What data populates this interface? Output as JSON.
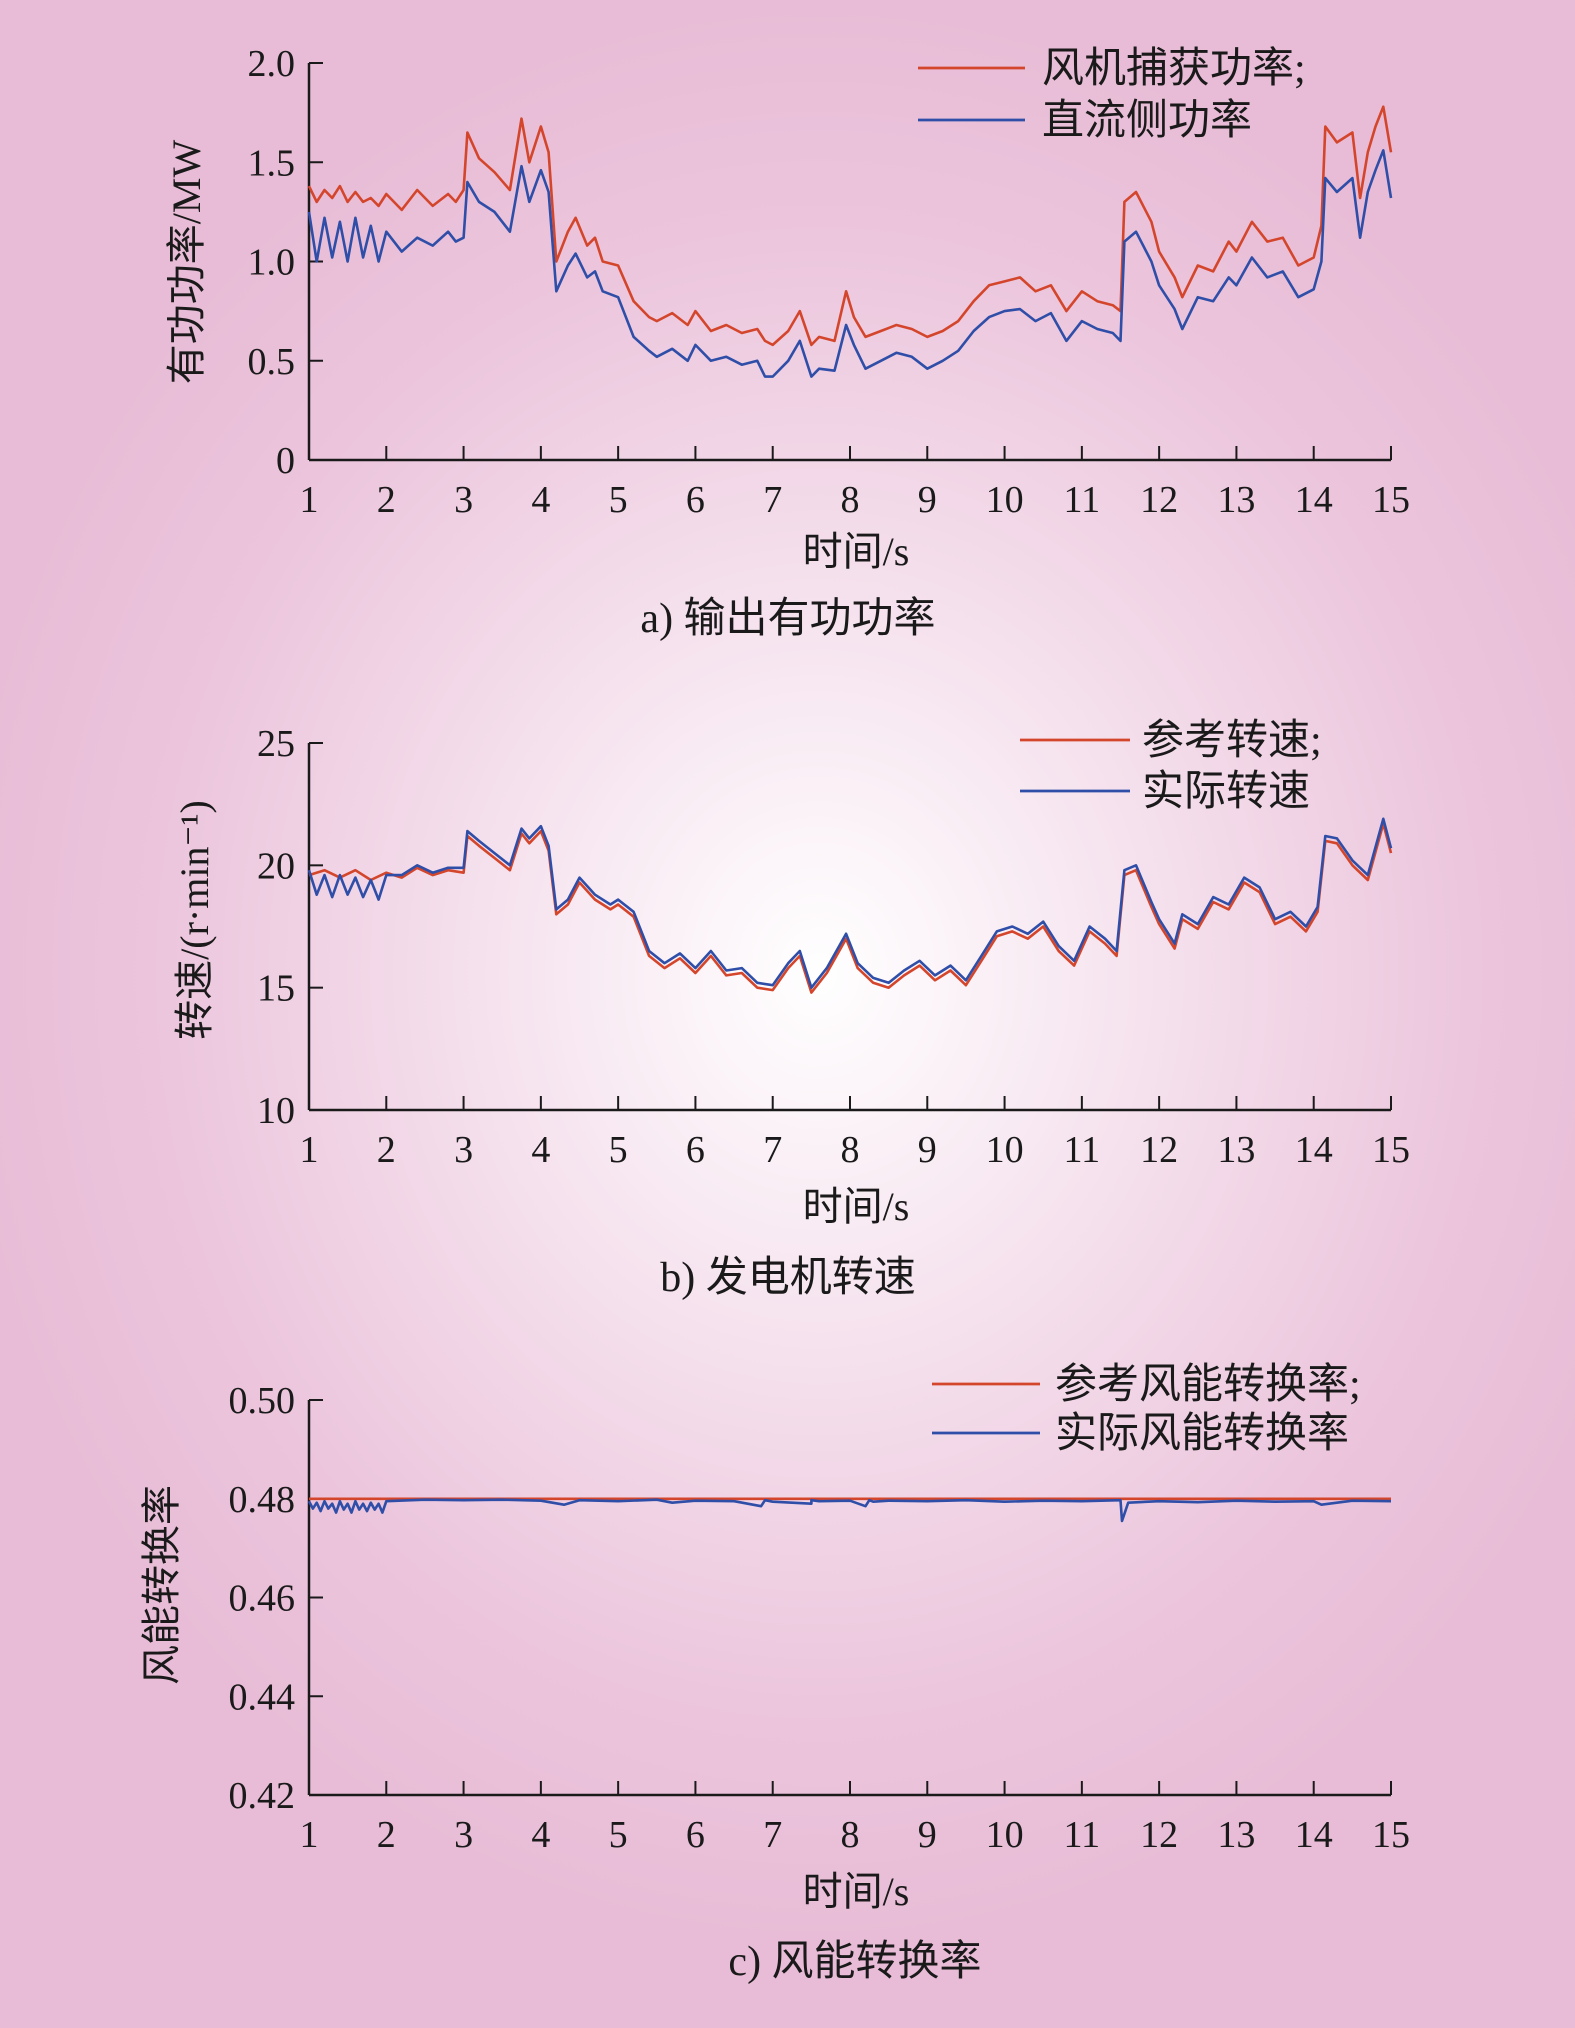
{
  "colors": {
    "red": "#d4462c",
    "blue": "#2f4ea8",
    "axis": "#1a1a1a"
  },
  "chart_data": [
    {
      "type": "line",
      "caption": "a) 输出有功功率",
      "xlabel": "时间/s",
      "ylabel": "有功功率/MW",
      "xlim": [
        1,
        15
      ],
      "ylim": [
        0,
        2.0
      ],
      "x_ticks": [
        "1",
        "2",
        "3",
        "4",
        "5",
        "6",
        "7",
        "8",
        "9",
        "10",
        "11",
        "12",
        "13",
        "14",
        "15"
      ],
      "y_ticks": [
        "0",
        "0.5",
        "1.0",
        "1.5",
        "2.0"
      ],
      "legend_position": "top-right",
      "series": [
        {
          "name": "风机捕获功率;",
          "color": "#d4462c",
          "x": [
            1.0,
            1.1,
            1.2,
            1.3,
            1.4,
            1.5,
            1.6,
            1.7,
            1.8,
            1.9,
            2.0,
            2.2,
            2.4,
            2.6,
            2.8,
            2.9,
            3.0,
            3.05,
            3.2,
            3.4,
            3.6,
            3.75,
            3.85,
            4.0,
            4.1,
            4.2,
            4.35,
            4.45,
            4.6,
            4.7,
            4.8,
            5.0,
            5.2,
            5.4,
            5.5,
            5.7,
            5.9,
            6.0,
            6.2,
            6.4,
            6.6,
            6.8,
            6.9,
            7.0,
            7.2,
            7.35,
            7.5,
            7.6,
            7.8,
            7.95,
            8.05,
            8.2,
            8.4,
            8.6,
            8.8,
            9.0,
            9.2,
            9.4,
            9.6,
            9.8,
            10.0,
            10.2,
            10.4,
            10.6,
            10.8,
            11.0,
            11.2,
            11.4,
            11.5,
            11.55,
            11.7,
            11.9,
            12.0,
            12.2,
            12.3,
            12.5,
            12.7,
            12.9,
            13.0,
            13.2,
            13.4,
            13.6,
            13.8,
            14.0,
            14.1,
            14.15,
            14.3,
            14.5,
            14.6,
            14.7,
            14.8,
            14.9,
            15.0
          ],
          "y": [
            1.38,
            1.3,
            1.36,
            1.32,
            1.38,
            1.3,
            1.35,
            1.3,
            1.32,
            1.28,
            1.34,
            1.26,
            1.36,
            1.28,
            1.34,
            1.3,
            1.36,
            1.65,
            1.52,
            1.45,
            1.36,
            1.72,
            1.5,
            1.68,
            1.55,
            1.0,
            1.15,
            1.22,
            1.08,
            1.12,
            1.0,
            0.98,
            0.8,
            0.72,
            0.7,
            0.74,
            0.68,
            0.75,
            0.65,
            0.68,
            0.64,
            0.66,
            0.6,
            0.58,
            0.65,
            0.75,
            0.58,
            0.62,
            0.6,
            0.85,
            0.72,
            0.62,
            0.65,
            0.68,
            0.66,
            0.62,
            0.65,
            0.7,
            0.8,
            0.88,
            0.9,
            0.92,
            0.85,
            0.88,
            0.75,
            0.85,
            0.8,
            0.78,
            0.75,
            1.3,
            1.35,
            1.2,
            1.05,
            0.92,
            0.82,
            0.98,
            0.95,
            1.1,
            1.05,
            1.2,
            1.1,
            1.12,
            0.98,
            1.02,
            1.18,
            1.68,
            1.6,
            1.65,
            1.32,
            1.55,
            1.68,
            1.78,
            1.55
          ]
        },
        {
          "name": "直流侧功率",
          "color": "#2f4ea8",
          "x": [
            1.0,
            1.1,
            1.2,
            1.3,
            1.4,
            1.5,
            1.6,
            1.7,
            1.8,
            1.9,
            2.0,
            2.2,
            2.4,
            2.6,
            2.8,
            2.9,
            3.0,
            3.05,
            3.2,
            3.4,
            3.6,
            3.75,
            3.85,
            4.0,
            4.1,
            4.2,
            4.35,
            4.45,
            4.6,
            4.7,
            4.8,
            5.0,
            5.2,
            5.4,
            5.5,
            5.7,
            5.9,
            6.0,
            6.2,
            6.4,
            6.6,
            6.8,
            6.9,
            7.0,
            7.2,
            7.35,
            7.5,
            7.6,
            7.8,
            7.95,
            8.05,
            8.2,
            8.4,
            8.6,
            8.8,
            9.0,
            9.2,
            9.4,
            9.6,
            9.8,
            10.0,
            10.2,
            10.4,
            10.6,
            10.8,
            11.0,
            11.2,
            11.4,
            11.5,
            11.55,
            11.7,
            11.9,
            12.0,
            12.2,
            12.3,
            12.5,
            12.7,
            12.9,
            13.0,
            13.2,
            13.4,
            13.6,
            13.8,
            14.0,
            14.1,
            14.15,
            14.3,
            14.5,
            14.6,
            14.7,
            14.8,
            14.9,
            15.0
          ],
          "y": [
            1.25,
            1.0,
            1.22,
            1.02,
            1.2,
            1.0,
            1.22,
            1.02,
            1.18,
            1.0,
            1.15,
            1.05,
            1.12,
            1.08,
            1.15,
            1.1,
            1.12,
            1.4,
            1.3,
            1.25,
            1.15,
            1.48,
            1.3,
            1.46,
            1.35,
            0.85,
            0.98,
            1.04,
            0.92,
            0.95,
            0.85,
            0.82,
            0.62,
            0.55,
            0.52,
            0.56,
            0.5,
            0.58,
            0.5,
            0.52,
            0.48,
            0.5,
            0.42,
            0.42,
            0.5,
            0.6,
            0.42,
            0.46,
            0.45,
            0.68,
            0.58,
            0.46,
            0.5,
            0.54,
            0.52,
            0.46,
            0.5,
            0.55,
            0.65,
            0.72,
            0.75,
            0.76,
            0.7,
            0.74,
            0.6,
            0.7,
            0.66,
            0.64,
            0.6,
            1.1,
            1.15,
            1.0,
            0.88,
            0.76,
            0.66,
            0.82,
            0.8,
            0.92,
            0.88,
            1.02,
            0.92,
            0.95,
            0.82,
            0.86,
            1.0,
            1.42,
            1.35,
            1.42,
            1.12,
            1.35,
            1.46,
            1.56,
            1.32
          ]
        }
      ]
    },
    {
      "type": "line",
      "caption": "b) 发电机转速",
      "xlabel": "时间/s",
      "ylabel": "转速/(r·min⁻¹)",
      "xlim": [
        1,
        15
      ],
      "ylim": [
        10,
        25
      ],
      "x_ticks": [
        "1",
        "2",
        "3",
        "4",
        "5",
        "6",
        "7",
        "8",
        "9",
        "10",
        "11",
        "12",
        "13",
        "14",
        "15"
      ],
      "y_ticks": [
        "10",
        "15",
        "20",
        "25"
      ],
      "legend_position": "top-right",
      "series": [
        {
          "name": "参考转速;",
          "color": "#d4462c",
          "x": [
            1.0,
            1.2,
            1.4,
            1.6,
            1.8,
            2.0,
            2.2,
            2.4,
            2.6,
            2.8,
            3.0,
            3.05,
            3.2,
            3.4,
            3.6,
            3.75,
            3.85,
            4.0,
            4.1,
            4.2,
            4.35,
            4.5,
            4.7,
            4.9,
            5.0,
            5.2,
            5.4,
            5.6,
            5.8,
            6.0,
            6.2,
            6.4,
            6.6,
            6.8,
            7.0,
            7.2,
            7.35,
            7.5,
            7.7,
            7.95,
            8.1,
            8.3,
            8.5,
            8.7,
            8.9,
            9.1,
            9.3,
            9.5,
            9.7,
            9.9,
            10.1,
            10.3,
            10.5,
            10.7,
            10.9,
            11.1,
            11.3,
            11.45,
            11.55,
            11.7,
            11.9,
            12.0,
            12.2,
            12.3,
            12.5,
            12.7,
            12.9,
            13.1,
            13.3,
            13.5,
            13.7,
            13.9,
            14.05,
            14.15,
            14.3,
            14.5,
            14.7,
            14.9,
            15.0
          ],
          "y": [
            19.6,
            19.8,
            19.5,
            19.8,
            19.4,
            19.7,
            19.5,
            19.9,
            19.6,
            19.8,
            19.7,
            21.2,
            20.8,
            20.3,
            19.8,
            21.3,
            20.9,
            21.4,
            20.6,
            18.0,
            18.4,
            19.3,
            18.6,
            18.2,
            18.4,
            17.9,
            16.3,
            15.8,
            16.2,
            15.6,
            16.3,
            15.5,
            15.6,
            15.0,
            14.9,
            15.8,
            16.3,
            14.8,
            15.6,
            17.0,
            15.8,
            15.2,
            15.0,
            15.5,
            15.9,
            15.3,
            15.7,
            15.1,
            16.1,
            17.1,
            17.3,
            17.0,
            17.5,
            16.5,
            15.9,
            17.3,
            16.8,
            16.3,
            19.6,
            19.8,
            18.3,
            17.6,
            16.6,
            17.8,
            17.4,
            18.5,
            18.2,
            19.3,
            18.9,
            17.6,
            17.9,
            17.3,
            18.1,
            21.0,
            20.9,
            20.0,
            19.4,
            21.7,
            20.5
          ]
        },
        {
          "name": "实际转速",
          "color": "#2f4ea8",
          "x": [
            1.0,
            1.1,
            1.2,
            1.3,
            1.4,
            1.5,
            1.6,
            1.7,
            1.8,
            1.9,
            2.0,
            2.2,
            2.4,
            2.6,
            2.8,
            3.0,
            3.05,
            3.2,
            3.4,
            3.6,
            3.75,
            3.85,
            4.0,
            4.1,
            4.2,
            4.35,
            4.5,
            4.7,
            4.9,
            5.0,
            5.2,
            5.4,
            5.6,
            5.8,
            6.0,
            6.2,
            6.4,
            6.6,
            6.8,
            7.0,
            7.2,
            7.35,
            7.5,
            7.7,
            7.95,
            8.1,
            8.3,
            8.5,
            8.7,
            8.9,
            9.1,
            9.3,
            9.5,
            9.7,
            9.9,
            10.1,
            10.3,
            10.5,
            10.7,
            10.9,
            11.1,
            11.3,
            11.45,
            11.55,
            11.7,
            11.9,
            12.0,
            12.2,
            12.3,
            12.5,
            12.7,
            12.9,
            13.1,
            13.3,
            13.5,
            13.7,
            13.9,
            14.05,
            14.15,
            14.3,
            14.5,
            14.7,
            14.9,
            15.0
          ],
          "y": [
            19.8,
            18.8,
            19.6,
            18.7,
            19.6,
            18.8,
            19.5,
            18.7,
            19.4,
            18.6,
            19.6,
            19.6,
            20.0,
            19.7,
            19.9,
            19.9,
            21.4,
            21.0,
            20.5,
            20.0,
            21.5,
            21.1,
            21.6,
            20.8,
            18.2,
            18.6,
            19.5,
            18.8,
            18.4,
            18.6,
            18.1,
            16.5,
            16.0,
            16.4,
            15.8,
            16.5,
            15.7,
            15.8,
            15.2,
            15.1,
            16.0,
            16.5,
            15.0,
            15.8,
            17.2,
            16.0,
            15.4,
            15.2,
            15.7,
            16.1,
            15.5,
            15.9,
            15.3,
            16.3,
            17.3,
            17.5,
            17.2,
            17.7,
            16.7,
            16.1,
            17.5,
            17.0,
            16.5,
            19.8,
            20.0,
            18.5,
            17.8,
            16.8,
            18.0,
            17.6,
            18.7,
            18.4,
            19.5,
            19.1,
            17.8,
            18.1,
            17.5,
            18.3,
            21.2,
            21.1,
            20.2,
            19.6,
            21.9,
            20.7
          ]
        }
      ]
    },
    {
      "type": "line",
      "caption": "c) 风能转换率",
      "xlabel": "时间/s",
      "ylabel": "风能转换率",
      "xlim": [
        1,
        15
      ],
      "ylim": [
        0.42,
        0.5
      ],
      "x_ticks": [
        "1",
        "2",
        "3",
        "4",
        "5",
        "6",
        "7",
        "8",
        "9",
        "10",
        "11",
        "12",
        "13",
        "14",
        "15"
      ],
      "y_ticks": [
        "0.42",
        "0.44",
        "0.46",
        "0.48",
        "0.50"
      ],
      "legend_position": "top-right",
      "series": [
        {
          "name": "参考风能转换率;",
          "color": "#d4462c",
          "x": [
            1,
            15
          ],
          "y": [
            0.48,
            0.48
          ]
        },
        {
          "name": "实际风能转换率",
          "color": "#2f4ea8",
          "x": [
            1.0,
            1.05,
            1.1,
            1.15,
            1.2,
            1.25,
            1.3,
            1.35,
            1.4,
            1.45,
            1.5,
            1.55,
            1.6,
            1.65,
            1.7,
            1.75,
            1.8,
            1.85,
            1.9,
            1.95,
            2.0,
            2.5,
            3.0,
            3.5,
            4.0,
            4.3,
            4.5,
            5.0,
            5.5,
            5.7,
            6.0,
            6.5,
            6.85,
            6.9,
            7.0,
            7.5,
            7.5,
            7.6,
            8.0,
            8.2,
            8.25,
            8.3,
            8.5,
            9.0,
            9.5,
            10.0,
            10.5,
            11.0,
            11.5,
            11.52,
            11.6,
            12.0,
            12.5,
            13.0,
            13.5,
            14.0,
            14.1,
            14.5,
            15.0
          ],
          "y": [
            0.4795,
            0.478,
            0.4792,
            0.4775,
            0.4795,
            0.478,
            0.479,
            0.4772,
            0.4795,
            0.4778,
            0.479,
            0.4772,
            0.4795,
            0.4778,
            0.479,
            0.4775,
            0.4792,
            0.4778,
            0.479,
            0.4772,
            0.4795,
            0.4798,
            0.4797,
            0.4798,
            0.4796,
            0.4788,
            0.4797,
            0.4795,
            0.4798,
            0.4792,
            0.4796,
            0.4795,
            0.4785,
            0.4797,
            0.4794,
            0.479,
            0.4797,
            0.4795,
            0.4796,
            0.4785,
            0.4797,
            0.4794,
            0.4796,
            0.4795,
            0.4797,
            0.4794,
            0.4796,
            0.4795,
            0.4797,
            0.4755,
            0.4792,
            0.4795,
            0.4793,
            0.4796,
            0.4794,
            0.4795,
            0.4788,
            0.4796,
            0.4795
          ]
        }
      ]
    }
  ]
}
